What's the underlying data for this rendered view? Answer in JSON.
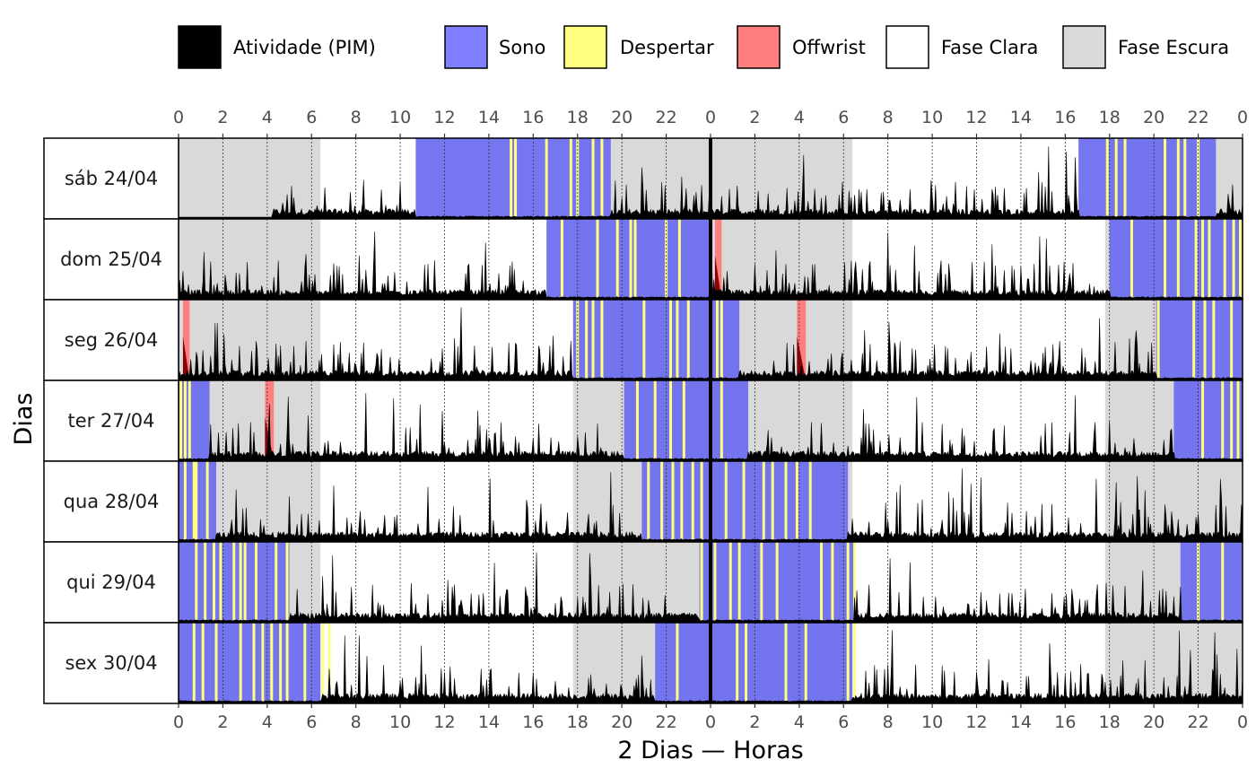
{
  "chart_data": {
    "type": "actogram",
    "title": "",
    "xlabel": "2 Dias — Horas",
    "ylabel": "Dias",
    "x_range_hours": [
      0,
      48
    ],
    "x_ticks": [
      "0",
      "2",
      "4",
      "6",
      "8",
      "10",
      "12",
      "14",
      "16",
      "18",
      "20",
      "22",
      "0",
      "2",
      "4",
      "6",
      "8",
      "10",
      "12",
      "14",
      "16",
      "18",
      "20",
      "22",
      "0"
    ],
    "legend": [
      {
        "key": "activity",
        "label": "Atividade (PIM)",
        "color": "#000000"
      },
      {
        "key": "sleep",
        "label": "Sono",
        "color": "#7f7fff"
      },
      {
        "key": "wake",
        "label": "Despertar",
        "color": "#ffff80"
      },
      {
        "key": "offwrist",
        "label": "Offwrist",
        "color": "#ff7f7f"
      },
      {
        "key": "light",
        "label": "Fase Clara",
        "color": "#ffffff"
      },
      {
        "key": "dark",
        "label": "Fase Escura",
        "color": "#d9d9d9"
      }
    ],
    "days": [
      {
        "label": "sáb 24/04",
        "dark": [
          [
            0,
            6.4
          ],
          [
            17.8,
            30.4
          ],
          [
            41.8,
            48
          ]
        ],
        "sleep": [
          [
            10.7,
            19.5
          ],
          [
            40.6,
            46.8
          ]
        ],
        "offwrist": [],
        "wake": [
          15.0,
          15.2,
          16.6,
          17.7,
          18.0,
          18.7,
          19.1,
          41.9,
          42.3,
          42.7,
          44.5,
          45.1,
          45.4,
          46.0
        ],
        "activity_start": 4.2
      },
      {
        "label": "dom 25/04",
        "dark": [
          [
            0,
            6.4
          ],
          [
            17.8,
            30.4
          ],
          [
            41.8,
            48
          ]
        ],
        "sleep": [
          [
            16.6,
            24.0
          ],
          [
            42.0,
            48.0
          ]
        ],
        "offwrist": [
          [
            24.2,
            24.5
          ]
        ],
        "wake": [
          17.3,
          18.9,
          19.8,
          20.4,
          20.6,
          22.0,
          22.6,
          43.0,
          44.5,
          45.1,
          45.9,
          46.2,
          46.5,
          47.2,
          47.6,
          47.9
        ],
        "activity_start": 0
      },
      {
        "label": "seg 26/04",
        "dark": [
          [
            0,
            6.4
          ],
          [
            17.8,
            30.4
          ],
          [
            41.8,
            48
          ]
        ],
        "sleep": [
          [
            17.8,
            24.0
          ],
          [
            24.0,
            25.3
          ],
          [
            44.1,
            48.0
          ]
        ],
        "offwrist": [
          [
            0.2,
            0.5
          ],
          [
            27.9,
            28.3
          ]
        ],
        "wake": [
          18.0,
          18.4,
          18.7,
          19.1,
          21.0,
          22.2,
          22.5,
          23.0,
          24.3,
          24.5,
          44.2,
          45.8,
          46.3,
          46.7,
          47.5
        ],
        "activity_start": 0
      },
      {
        "label": "ter 27/04",
        "dark": [
          [
            0,
            6.4
          ],
          [
            17.8,
            30.4
          ],
          [
            41.8,
            48
          ]
        ],
        "sleep": [
          [
            0,
            1.4
          ],
          [
            20.1,
            24.0
          ],
          [
            24.0,
            25.7
          ],
          [
            44.9,
            48.0
          ]
        ],
        "offwrist": [
          [
            3.9,
            4.3
          ]
        ],
        "wake": [
          0.1,
          0.3,
          0.5,
          20.7,
          21.5,
          22.2,
          22.8,
          24.5,
          46.2,
          47.1,
          47.5,
          47.8
        ],
        "activity_start": 0
      },
      {
        "label": "qua 28/04",
        "dark": [
          [
            0,
            6.4
          ],
          [
            17.8,
            30.4
          ],
          [
            41.8,
            48
          ]
        ],
        "sleep": [
          [
            0,
            1.7
          ],
          [
            20.9,
            24.0
          ],
          [
            24.0,
            30.2
          ]
        ],
        "offwrist": [],
        "wake": [
          0.3,
          0.7,
          0.8,
          1.3,
          21.2,
          21.8,
          22.3,
          22.7,
          23.2,
          23.6,
          24.7,
          25.5,
          26.4,
          26.8,
          27.4,
          27.9,
          28.5
        ],
        "activity_start": 0
      },
      {
        "label": "qui 29/04",
        "dark": [
          [
            0,
            6.4
          ],
          [
            17.8,
            30.4
          ],
          [
            41.8,
            48
          ]
        ],
        "sleep": [
          [
            0,
            5.0
          ],
          [
            23.5,
            24.0
          ],
          [
            24.0,
            30.5
          ],
          [
            45.2,
            48.0
          ]
        ],
        "offwrist": [],
        "wake": [
          0.8,
          1.2,
          1.6,
          1.9,
          2.5,
          2.8,
          3.0,
          3.5,
          4.4,
          4.9,
          23.6,
          24.2,
          24.9,
          25.3,
          26.3,
          27.0,
          29.0,
          29.5,
          30.2,
          30.5,
          46.0,
          47.1
        ],
        "activity_start": 0
      },
      {
        "label": "sex 30/04",
        "dark": [
          [
            0,
            6.4
          ],
          [
            17.8,
            30.4
          ],
          [
            41.8,
            48
          ]
        ],
        "sleep": [
          [
            0,
            6.4
          ],
          [
            21.5,
            24.0
          ],
          [
            24.0,
            30.4
          ]
        ],
        "offwrist": [],
        "wake": [
          0.7,
          1.1,
          1.7,
          2.8,
          3.4,
          3.8,
          4.2,
          4.6,
          4.9,
          5.7,
          6.5,
          6.8,
          22.5,
          25.2,
          25.6,
          27.4,
          28.3,
          30.2,
          30.5
        ],
        "activity_start": 0
      }
    ]
  }
}
